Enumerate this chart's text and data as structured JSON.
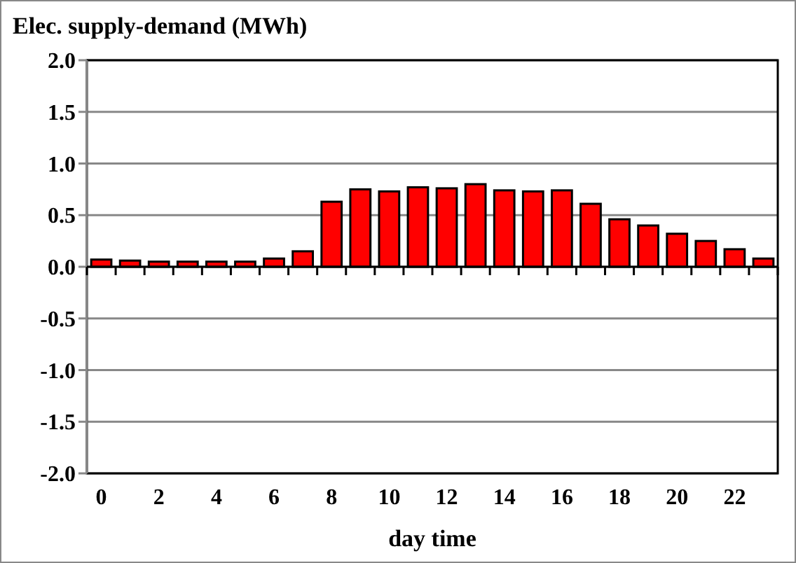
{
  "chart_data": {
    "type": "bar",
    "title": "Elec. supply-demand (MWh)",
    "xlabel": "day time",
    "categories": [
      "0",
      null,
      "2",
      null,
      "4",
      null,
      "6",
      null,
      "8",
      null,
      "10",
      null,
      "12",
      null,
      "14",
      null,
      "16",
      null,
      "18",
      null,
      "20",
      null,
      "22",
      null
    ],
    "values": [
      0.07,
      0.06,
      0.05,
      0.05,
      0.05,
      0.05,
      0.08,
      0.15,
      0.63,
      0.75,
      0.73,
      0.77,
      0.76,
      0.8,
      0.74,
      0.73,
      0.74,
      0.61,
      0.46,
      0.4,
      0.32,
      0.25,
      0.17,
      0.08
    ],
    "color": "#ff0000",
    "ylim": [
      -2,
      2
    ],
    "yticks": [
      {
        "value": -2,
        "label": "-2.0"
      },
      {
        "value": -1.5,
        "label": "-1.5"
      },
      {
        "value": -1,
        "label": "-1.0"
      },
      {
        "value": -0.5,
        "label": "-0.5"
      },
      {
        "value": 0,
        "label": "0.0"
      },
      {
        "value": 0.5,
        "label": "0.5"
      },
      {
        "value": 1,
        "label": "1.0"
      },
      {
        "value": 1.5,
        "label": "1.5"
      },
      {
        "value": 2,
        "label": "2.0"
      }
    ],
    "grid": "y"
  }
}
